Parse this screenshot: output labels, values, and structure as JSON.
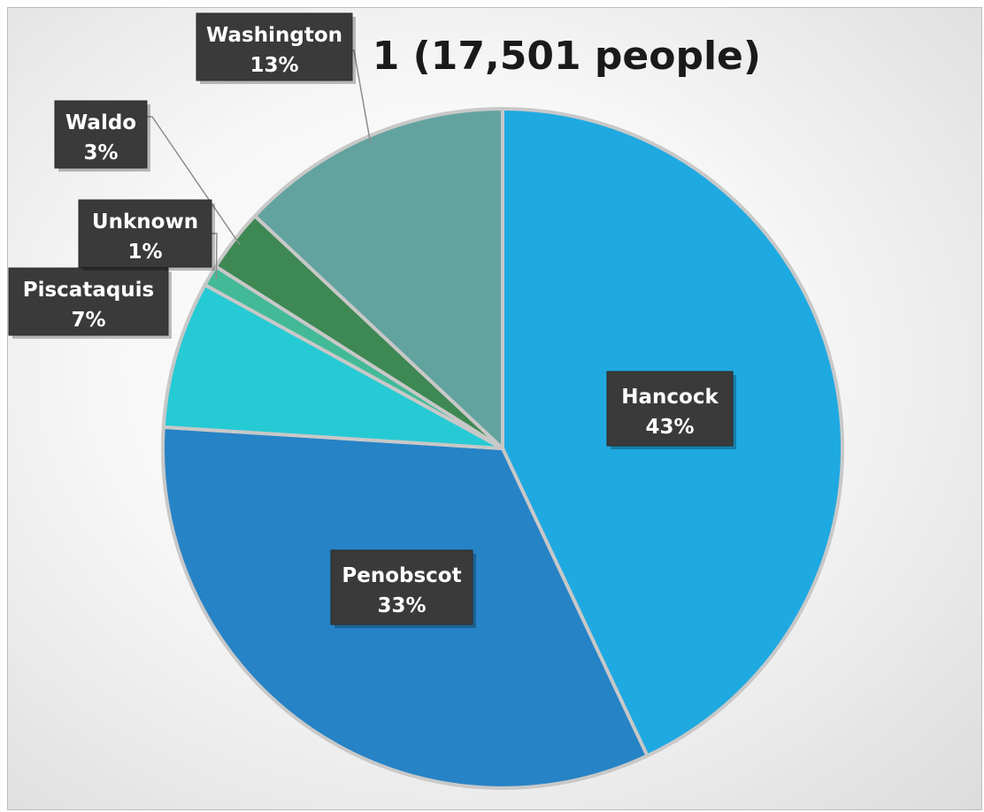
{
  "chart_data": {
    "type": "pie",
    "title": "1 (17,501 people)",
    "series": [
      {
        "categories": [
          "Hancock",
          "Penobscot",
          "Piscataquis",
          "Unknown",
          "Waldo",
          "Washington"
        ],
        "values": [
          43,
          33,
          7,
          1,
          3,
          13
        ],
        "labels": [
          "43%",
          "33%",
          "7%",
          "1%",
          "3%",
          "13%"
        ]
      }
    ],
    "colors": [
      "#1fa9e1",
      "#2683c6",
      "#26cad4",
      "#42ba97",
      "#3e8853",
      "#62a39f"
    ],
    "legend": "none"
  }
}
